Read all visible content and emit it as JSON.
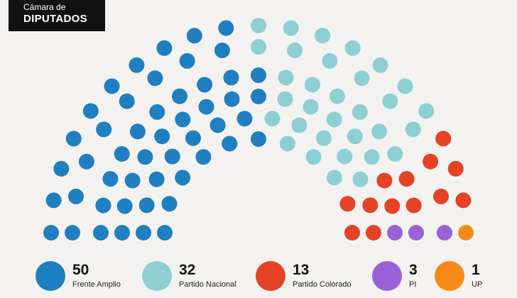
{
  "title": {
    "subtitle": "Cámara de",
    "main": "DIPUTADOS"
  },
  "chart_data": {
    "type": "parliament",
    "total_seats": 99,
    "series": [
      {
        "name": "Frente Amplio",
        "seats": 50,
        "color": "#1f7fc1"
      },
      {
        "name": "Partido Nacional",
        "seats": 32,
        "color": "#8ecfd3"
      },
      {
        "name": "Partido Colorado",
        "seats": 13,
        "color": "#e64226"
      },
      {
        "name": "PI",
        "seats": 3,
        "color": "#9a62d9"
      },
      {
        "name": "UP",
        "seats": 1,
        "color": "#f68a18"
      }
    ]
  }
}
